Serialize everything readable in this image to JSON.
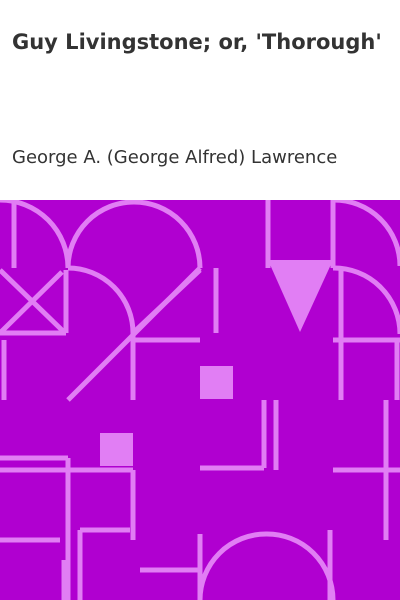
{
  "book": {
    "title": "Guy Livingstone; or, 'Thorough'",
    "author": "George A. (George Alfred) Lawrence"
  },
  "colors": {
    "background": "#ffffff",
    "text": "#333333",
    "art_background": "#b000d0",
    "art_lines": "#e17ef4"
  }
}
